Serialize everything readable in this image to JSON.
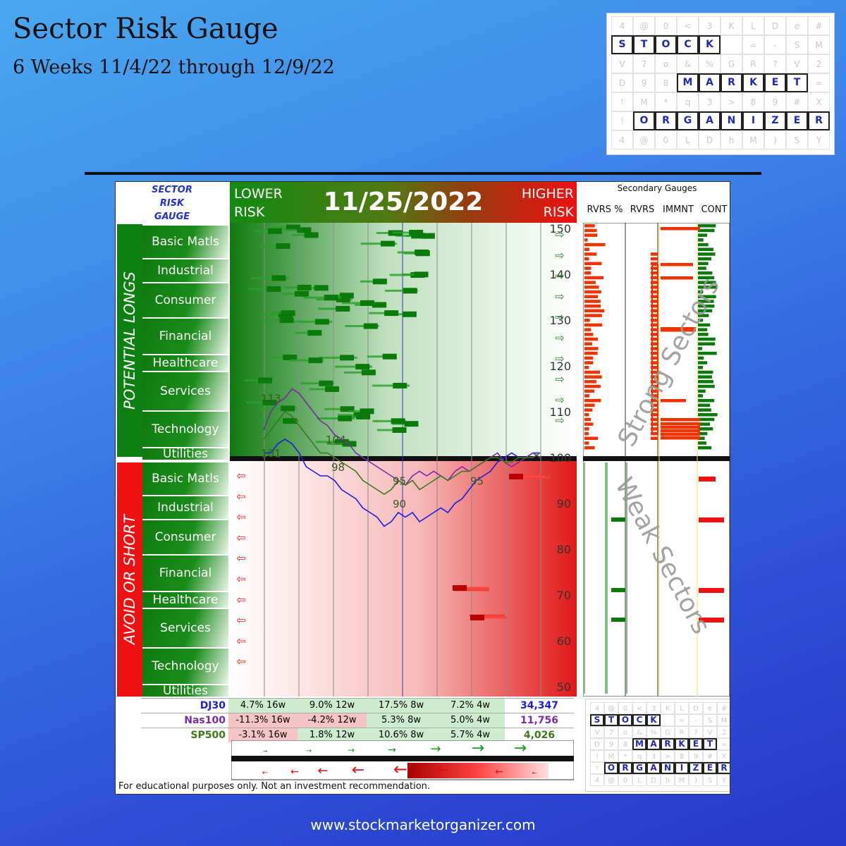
{
  "page": {
    "title": "Sector Risk Gauge",
    "subtitle": "6 Weeks 11/4/22 through 12/9/22",
    "url": "www.stockmarketorganizer.com"
  },
  "logo": {
    "words": [
      "STOCK",
      "MARKET",
      "ORGANIZER"
    ],
    "filler_rows": [
      [
        "4",
        "@",
        "0",
        "<",
        "3",
        "K",
        "L",
        "D",
        "e",
        "#"
      ],
      [
        "",
        "",
        "",
        "",
        "",
        "",
        "=",
        "-",
        "S",
        "M"
      ],
      [
        "V",
        "7",
        "o",
        "&",
        "%",
        "G",
        "R",
        "?",
        "V",
        "2"
      ],
      [
        "D",
        "9",
        "8",
        "",
        "",
        "",
        "",
        "",
        "",
        "="
      ],
      [
        "!",
        "M",
        "*",
        "q",
        "3",
        ">",
        "8",
        "9",
        "#",
        "X"
      ],
      [
        "!",
        "",
        "",
        "",
        "",
        "",
        "",
        "",
        "",
        "R"
      ],
      [
        "4",
        "@",
        "0",
        "L",
        "D",
        "h",
        "M",
        ")",
        "S",
        "Y"
      ]
    ]
  },
  "panel": {
    "gauge_title_lines": [
      "SECTOR",
      "RISK",
      "GAUGE"
    ],
    "lower_risk": [
      "LOWER",
      "RISK"
    ],
    "higher_risk": [
      "HIGHER",
      "RISK"
    ],
    "date": "11/25/2022",
    "potential_longs": "POTENTIAL LONGS",
    "avoid_or_short": "AVOID OR SHORT",
    "sectors": [
      "Basic Matls",
      "Industrial",
      "Consumer",
      "Financial",
      "Healthcare",
      "Services",
      "Technology",
      "Utilities"
    ],
    "secondary_title": "Secondary Gauges",
    "secondary_columns": [
      "RVRS %",
      "RVRS",
      "IMMNT",
      "CONT"
    ],
    "strong_sectors": "Strong Sectors",
    "weak_sectors": "Weak Sectors",
    "disclaimer": "For educational purposes only.  Not an investment recommendation.",
    "colors": {
      "green": "#0e7f12",
      "red": "#ee1111",
      "dj30": "#1d1de0",
      "nas100": "#7a2aa8",
      "sp500": "#3a7a1a"
    }
  },
  "indices": [
    {
      "name": "DJ30",
      "cells": [
        "4.7% 16w",
        "9.0% 12w",
        "17.5% 8w",
        "7.2% 4w"
      ],
      "value": "34,347"
    },
    {
      "name": "Nas100",
      "cells": [
        "-11.3% 16w",
        "-4.2% 12w",
        "5.3% 8w",
        "5.0% 4w"
      ],
      "value": "11,756"
    },
    {
      "name": "SP500",
      "cells": [
        "-3.1% 16w",
        "1.8% 12w",
        "10.6% 8w",
        "5.7% 4w"
      ],
      "value": "4,026"
    }
  ],
  "chart_data": {
    "type": "line",
    "title": "",
    "ylabel": "",
    "ylim": [
      50,
      150
    ],
    "y_ticks": [
      150,
      140,
      130,
      120,
      110,
      100,
      90,
      80,
      70,
      60,
      50
    ],
    "annotations": [
      "113",
      "101",
      "104",
      "98",
      "95",
      "90",
      "95"
    ],
    "series": [
      {
        "name": "DJ30",
        "values": [
          101,
          101,
          103,
          104,
          103,
          101,
          98,
          97,
          96,
          96,
          95,
          93,
          92,
          91,
          89,
          88,
          87,
          85,
          86,
          88,
          87,
          88,
          86,
          87,
          88,
          89,
          88,
          90,
          91,
          93,
          95,
          96,
          97,
          99,
          100,
          101,
          100,
          100,
          101,
          101
        ]
      },
      {
        "name": "Nas100",
        "values": [
          106,
          110,
          112,
          113,
          115,
          114,
          112,
          110,
          108,
          107,
          105,
          104,
          103,
          101,
          100,
          99,
          98,
          97,
          96,
          95,
          94,
          96,
          97,
          96,
          97,
          96,
          95,
          97,
          98,
          97,
          98,
          99,
          100,
          101,
          99,
          98,
          99,
          100,
          101,
          100
        ]
      },
      {
        "name": "SP500",
        "values": [
          104,
          106,
          108,
          110,
          109,
          107,
          105,
          103,
          101,
          101,
          100,
          99,
          98,
          97,
          95,
          94,
          93,
          92,
          93,
          95,
          94,
          95,
          93,
          94,
          95,
          96,
          95,
          96,
          97,
          97,
          98,
          99,
          100,
          100,
          99,
          99,
          100,
          100,
          100,
          101
        ]
      }
    ]
  }
}
